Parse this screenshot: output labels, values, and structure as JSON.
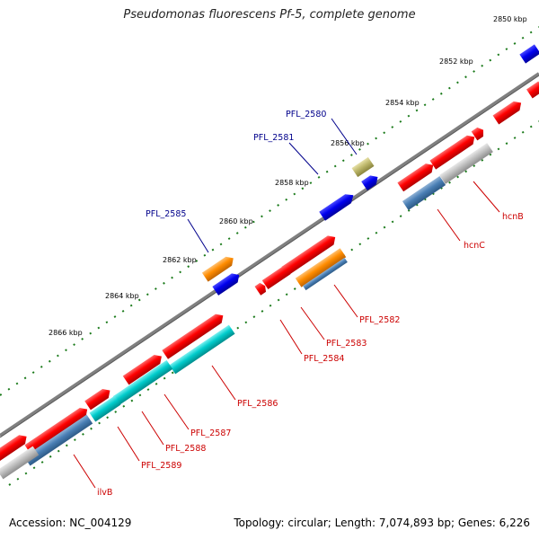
{
  "title": "Pseudomonas fluorescens Pf-5, complete genome",
  "footer": {
    "accession": "Accession: NC_004129",
    "summary": "Topology: circular; Length: 7,074,893 bp; Genes: 6,226"
  },
  "colors": {
    "backbone": "#808080",
    "tick": "#1a7a1a",
    "gene_red": "#ff0000",
    "gene_blue": "#0000ee",
    "gene_cyan": "#00cccc",
    "gene_steel": "#4a7fb5",
    "gene_grey": "#c0c0c0",
    "gene_olive": "#bdb76b",
    "gene_orange": "#ff8c00",
    "label_red": "#cc0000",
    "label_blue": "#00008b"
  },
  "scale_labels": [
    "2850 kbp",
    "2852 kbp",
    "2854 kbp",
    "2856 kbp",
    "2858 kbp",
    "2860 kbp",
    "2862 kbp",
    "2864 kbp",
    "2866 kbp"
  ],
  "gene_labels_forward": [
    "PFL_2580",
    "PFL_2581",
    "PFL_2585"
  ],
  "gene_labels_reverse": [
    "hcnB",
    "hcnC",
    "PFL_2582",
    "PFL_2583",
    "PFL_2584",
    "PFL_2586",
    "PFL_2587",
    "PFL_2588",
    "PFL_2589",
    "ilvB"
  ]
}
